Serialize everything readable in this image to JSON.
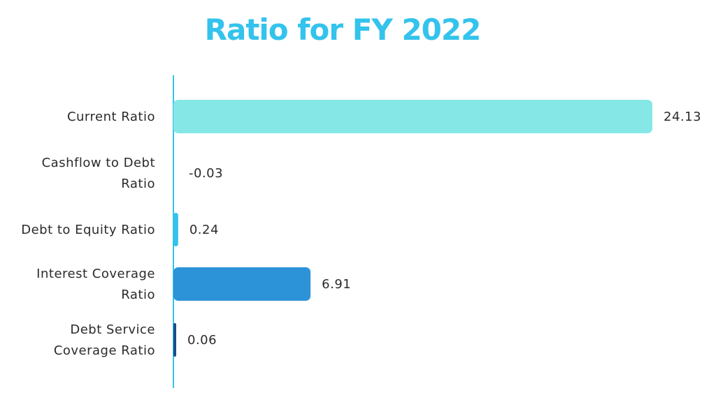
{
  "chart_data": {
    "type": "bar",
    "orientation": "horizontal",
    "title": "Ratio for FY 2022",
    "xlabel": "",
    "ylabel": "",
    "grid": false,
    "legend": "none",
    "title_color": "#33c3ec",
    "axis_color": "#33c3ec",
    "categories": [
      [
        "Current Ratio"
      ],
      [
        "Cashflow to Debt",
        "Ratio"
      ],
      [
        "Debt to Equity Ratio"
      ],
      [
        "Interest Coverage",
        "Ratio"
      ],
      [
        "Debt Service",
        "Coverage Ratio"
      ]
    ],
    "values": [
      24.13,
      -0.03,
      0.24,
      6.91,
      0.06
    ],
    "value_labels": [
      "24.13",
      "-0.03",
      "0.24",
      "6.91",
      "0.06"
    ],
    "colors": [
      "#86e8e6",
      "#33c3ec",
      "#33c3ec",
      "#2d93d8",
      "#164e8a"
    ]
  }
}
